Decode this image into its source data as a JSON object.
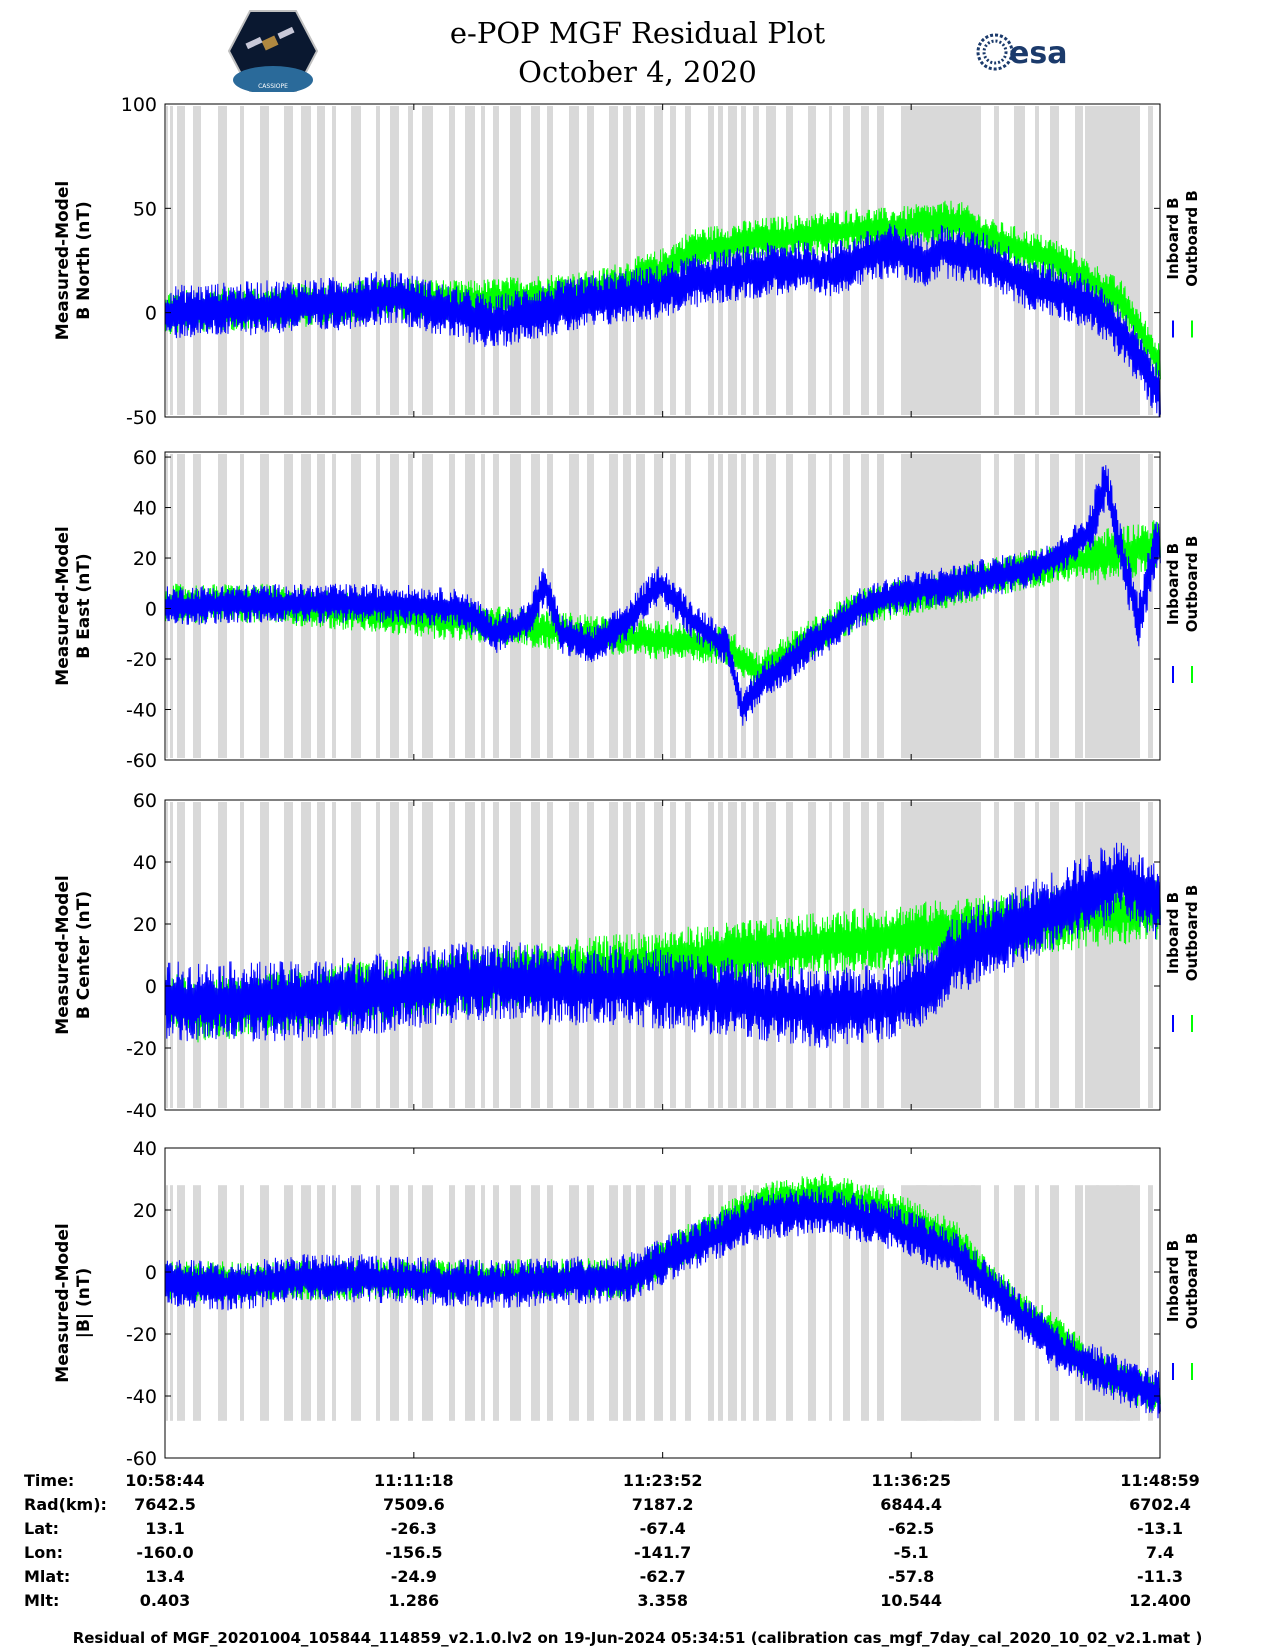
{
  "header": {
    "title_line1": "e-POP MGF Residual Plot",
    "title_line2": "October 4, 2020",
    "logo_left": "cassiope-logo",
    "logo_left_text": "CASSIOPE",
    "logo_right": "esa-logo",
    "logo_right_text": "esa"
  },
  "colors": {
    "inboard": "#0000ff",
    "outboard": "#00ff00",
    "gap": "#d9d9d9",
    "axis": "#000000"
  },
  "chart_data": [
    {
      "type": "line",
      "title": "Measured-Model B North (nT)",
      "ylabel_line1": "Measured-Model",
      "ylabel_line2": "B North (nT)",
      "ylim": [
        -50,
        100
      ],
      "yticks": [
        "100",
        "50",
        "0",
        "-50"
      ],
      "xlim": [
        0,
        3015
      ],
      "legend": [
        "Inboard B",
        "Outboard B"
      ],
      "legend_position": "right",
      "series": [
        {
          "name": "Inboard B",
          "color": "#0000ff",
          "noise": 10,
          "values": [
            [
              0,
              0
            ],
            [
              100,
              1
            ],
            [
              500,
              4
            ],
            [
              700,
              8
            ],
            [
              800,
              3
            ],
            [
              1000,
              -5
            ],
            [
              1100,
              0
            ],
            [
              1400,
              8
            ],
            [
              1500,
              10
            ],
            [
              1600,
              15
            ],
            [
              1800,
              20
            ],
            [
              1900,
              22
            ],
            [
              2000,
              20
            ],
            [
              2100,
              25
            ],
            [
              2200,
              30
            ],
            [
              2300,
              25
            ],
            [
              2350,
              30
            ],
            [
              2400,
              28
            ],
            [
              2500,
              25
            ],
            [
              2600,
              15
            ],
            [
              2800,
              5
            ],
            [
              2900,
              -10
            ],
            [
              2960,
              -25
            ],
            [
              3015,
              -40
            ]
          ]
        },
        {
          "name": "Outboard B",
          "color": "#00ff00",
          "noise": 8,
          "values": [
            [
              0,
              0
            ],
            [
              100,
              1
            ],
            [
              500,
              4
            ],
            [
              700,
              7
            ],
            [
              900,
              5
            ],
            [
              1300,
              10
            ],
            [
              1500,
              20
            ],
            [
              1600,
              30
            ],
            [
              1800,
              35
            ],
            [
              2000,
              38
            ],
            [
              2100,
              40
            ],
            [
              2200,
              40
            ],
            [
              2300,
              42
            ],
            [
              2400,
              44
            ],
            [
              2500,
              35
            ],
            [
              2700,
              25
            ],
            [
              2900,
              5
            ],
            [
              3015,
              -25
            ]
          ]
        }
      ]
    },
    {
      "type": "line",
      "title": "Measured-Model B East (nT)",
      "ylabel_line1": "Measured-Model",
      "ylabel_line2": "B East (nT)",
      "ylim": [
        -60,
        62
      ],
      "yticks": [
        "60",
        "40",
        "20",
        "0",
        "-20",
        "-40",
        "-60"
      ],
      "xlim": [
        0,
        3015
      ],
      "legend": [
        "Inboard B",
        "Outboard B"
      ],
      "legend_position": "right",
      "series": [
        {
          "name": "Inboard B",
          "color": "#0000ff",
          "noise": 6,
          "values": [
            [
              0,
              1
            ],
            [
              300,
              2
            ],
            [
              700,
              2
            ],
            [
              900,
              0
            ],
            [
              1000,
              -10
            ],
            [
              1100,
              -5
            ],
            [
              1150,
              10
            ],
            [
              1200,
              -10
            ],
            [
              1300,
              -15
            ],
            [
              1400,
              -5
            ],
            [
              1500,
              10
            ],
            [
              1600,
              -5
            ],
            [
              1700,
              -15
            ],
            [
              1750,
              -40
            ],
            [
              1800,
              -30
            ],
            [
              1900,
              -20
            ],
            [
              2000,
              -10
            ],
            [
              2100,
              0
            ],
            [
              2200,
              5
            ],
            [
              2400,
              10
            ],
            [
              2600,
              15
            ],
            [
              2700,
              20
            ],
            [
              2800,
              30
            ],
            [
              2850,
              50
            ],
            [
              2900,
              20
            ],
            [
              2950,
              -5
            ],
            [
              3000,
              25
            ],
            [
              3015,
              25
            ]
          ]
        },
        {
          "name": "Outboard B",
          "color": "#00ff00",
          "noise": 6,
          "values": [
            [
              0,
              2
            ],
            [
              300,
              2
            ],
            [
              1700,
              -15
            ],
            [
              1800,
              -25
            ],
            [
              2100,
              0
            ],
            [
              2600,
              15
            ],
            [
              3015,
              25
            ]
          ]
        }
      ]
    },
    {
      "type": "line",
      "title": "Measured-Model B Center (nT)",
      "ylabel_line1": "Measured-Model",
      "ylabel_line2": "B Center (nT)",
      "ylim": [
        -40,
        60
      ],
      "yticks": [
        "60",
        "40",
        "20",
        "0",
        "-20",
        "-40"
      ],
      "xlim": [
        0,
        3015
      ],
      "legend": [
        "Inboard B",
        "Outboard B"
      ],
      "legend_position": "right",
      "series": [
        {
          "name": "Inboard B",
          "color": "#0000ff",
          "noise": 10,
          "values": [
            [
              0,
              -5
            ],
            [
              200,
              -5
            ],
            [
              400,
              -5
            ],
            [
              600,
              -3
            ],
            [
              800,
              0
            ],
            [
              1000,
              2
            ],
            [
              1200,
              0
            ],
            [
              1400,
              0
            ],
            [
              1600,
              -2
            ],
            [
              1800,
              -5
            ],
            [
              2000,
              -8
            ],
            [
              2200,
              -5
            ],
            [
              2300,
              0
            ],
            [
              2400,
              10
            ],
            [
              2600,
              20
            ],
            [
              2800,
              30
            ],
            [
              2900,
              35
            ],
            [
              3015,
              25
            ]
          ]
        },
        {
          "name": "Outboard B",
          "color": "#00ff00",
          "noise": 8,
          "values": [
            [
              0,
              -5
            ],
            [
              100,
              -8
            ],
            [
              3015,
              25
            ]
          ]
        }
      ]
    },
    {
      "type": "line",
      "title": "Measured-Model |B| (nT)",
      "ylabel_line1": "Measured-Model",
      "ylabel_line2": "|B| (nT)",
      "ylim": [
        -60,
        40
      ],
      "yticks": [
        "40",
        "20",
        "0",
        "-20",
        "-40",
        "-60"
      ],
      "xlim": [
        0,
        3015
      ],
      "legend": [
        "Inboard B",
        "Outboard B"
      ],
      "legend_position": "right",
      "series": [
        {
          "name": "Inboard B",
          "color": "#0000ff",
          "noise": 6,
          "values": [
            [
              0,
              -3
            ],
            [
              200,
              -5
            ],
            [
              400,
              -2
            ],
            [
              600,
              -2
            ],
            [
              800,
              -3
            ],
            [
              1000,
              -4
            ],
            [
              1200,
              -3
            ],
            [
              1400,
              -2
            ],
            [
              1600,
              8
            ],
            [
              1800,
              18
            ],
            [
              2000,
              20
            ],
            [
              2200,
              15
            ],
            [
              2400,
              5
            ],
            [
              2500,
              -5
            ],
            [
              2600,
              -15
            ],
            [
              2700,
              -25
            ],
            [
              2800,
              -30
            ],
            [
              2900,
              -35
            ],
            [
              3015,
              -40
            ]
          ]
        },
        {
          "name": "Outboard B",
          "color": "#00ff00",
          "noise": 5,
          "values": [
            [
              0,
              -3
            ],
            [
              1400,
              -2
            ],
            [
              1600,
              10
            ],
            [
              1800,
              22
            ],
            [
              2000,
              26
            ],
            [
              2200,
              20
            ],
            [
              2400,
              10
            ],
            [
              2500,
              -3
            ],
            [
              2600,
              -13
            ],
            [
              2700,
              -20
            ],
            [
              2800,
              -30
            ],
            [
              2900,
              -35
            ],
            [
              3015,
              -40
            ]
          ]
        }
      ]
    }
  ],
  "x_axis": {
    "tick_times": [
      "10:58:44",
      "11:11:18",
      "11:23:52",
      "11:36:25",
      "11:48:59"
    ],
    "tick_seconds": [
      0,
      754,
      1508,
      2261,
      3015
    ]
  },
  "ephemeris": {
    "labels": [
      "Time:",
      "Rad(km):",
      "Lat:",
      "Lon:",
      "Mlat:",
      "Mlt:"
    ],
    "columns": [
      [
        "10:58:44",
        "7642.5",
        "13.1",
        "-160.0",
        "13.4",
        "0.403"
      ],
      [
        "11:11:18",
        "7509.6",
        "-26.3",
        "-156.5",
        "-24.9",
        "1.286"
      ],
      [
        "11:23:52",
        "7187.2",
        "-67.4",
        "-141.7",
        "-62.7",
        "3.358"
      ],
      [
        "11:36:25",
        "6844.4",
        "-62.5",
        "-5.1",
        "-57.8",
        "10.544"
      ],
      [
        "11:48:59",
        "6702.4",
        "-13.1",
        "7.4",
        "-11.3",
        "12.400"
      ]
    ]
  },
  "footer": {
    "text": "Residual of MGF_20201004_105844_114859_v2.1.0.lv2 on 19-Jun-2024 05:34:51 (calibration cas_mgf_7day_cal_2020_10_02_v2.1.mat )"
  }
}
